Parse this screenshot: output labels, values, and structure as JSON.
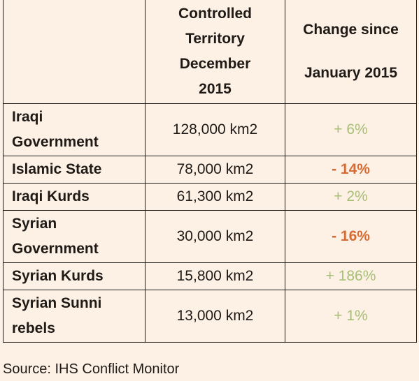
{
  "table": {
    "headers": [
      "",
      "Controlled\nTerritory\nDecember\n2015",
      "Change since\nJanuary 2015"
    ],
    "rows": [
      {
        "name": "Iraqi\nGovernment",
        "area": "128,000 km2",
        "change": "+ 6%",
        "trend": "positive"
      },
      {
        "name": "Islamic State",
        "area": "78,000 km2",
        "change": "- 14%",
        "trend": "negative"
      },
      {
        "name": "Iraqi Kurds",
        "area": "61,300 km2",
        "change": "+ 2%",
        "trend": "positive"
      },
      {
        "name": "Syrian\nGovernment",
        "area": "30,000 km2",
        "change": "- 16%",
        "trend": "negative"
      },
      {
        "name": "Syrian Kurds",
        "area": "15,800 km2",
        "change": "+ 186%",
        "trend": "positive"
      },
      {
        "name": "Syrian Sunni\nrebels",
        "area": "13,000 km2",
        "change": "+ 1%",
        "trend": "positive"
      }
    ]
  },
  "source": "Source: IHS Conflict Monitor",
  "colors": {
    "background": "#fdf1e6",
    "text": "#1f1a16",
    "positive": "#a7bf74",
    "negative": "#d66b34"
  }
}
